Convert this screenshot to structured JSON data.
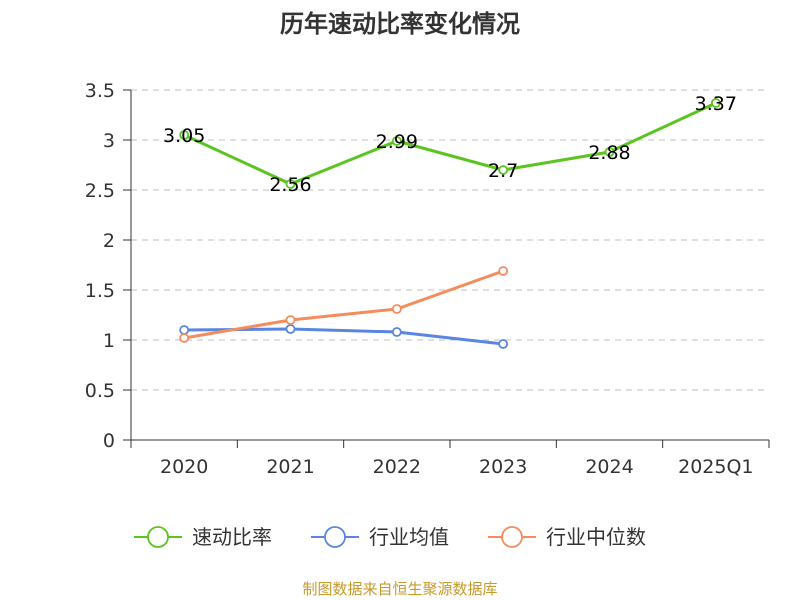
{
  "chart_data": {
    "type": "line",
    "title": "历年速动比率变化情况",
    "categories": [
      "2020",
      "2021",
      "2022",
      "2023",
      "2024",
      "2025Q1"
    ],
    "ylim": [
      0,
      3.5
    ],
    "yticks": [
      "0",
      "0.5",
      "1",
      "1.5",
      "2",
      "2.5",
      "3",
      "3.5"
    ],
    "grid": true,
    "legend_position": "bottom-center",
    "series": [
      {
        "name": "速动比率",
        "color": "#5cc420",
        "values": [
          3.05,
          2.56,
          2.99,
          2.7,
          2.88,
          3.37
        ],
        "labels": [
          "3.05",
          "2.56",
          "2.99",
          "2.7",
          "2.88",
          "3.37"
        ]
      },
      {
        "name": "行业均值",
        "color": "#5b86e0",
        "values": [
          1.1,
          1.11,
          1.08,
          0.96,
          null,
          null
        ]
      },
      {
        "name": "行业中位数",
        "color": "#f58c5b",
        "values": [
          1.02,
          1.2,
          1.31,
          1.69,
          null,
          null
        ]
      }
    ]
  },
  "footer": {
    "source": "制图数据来自恒生聚源数据库"
  }
}
